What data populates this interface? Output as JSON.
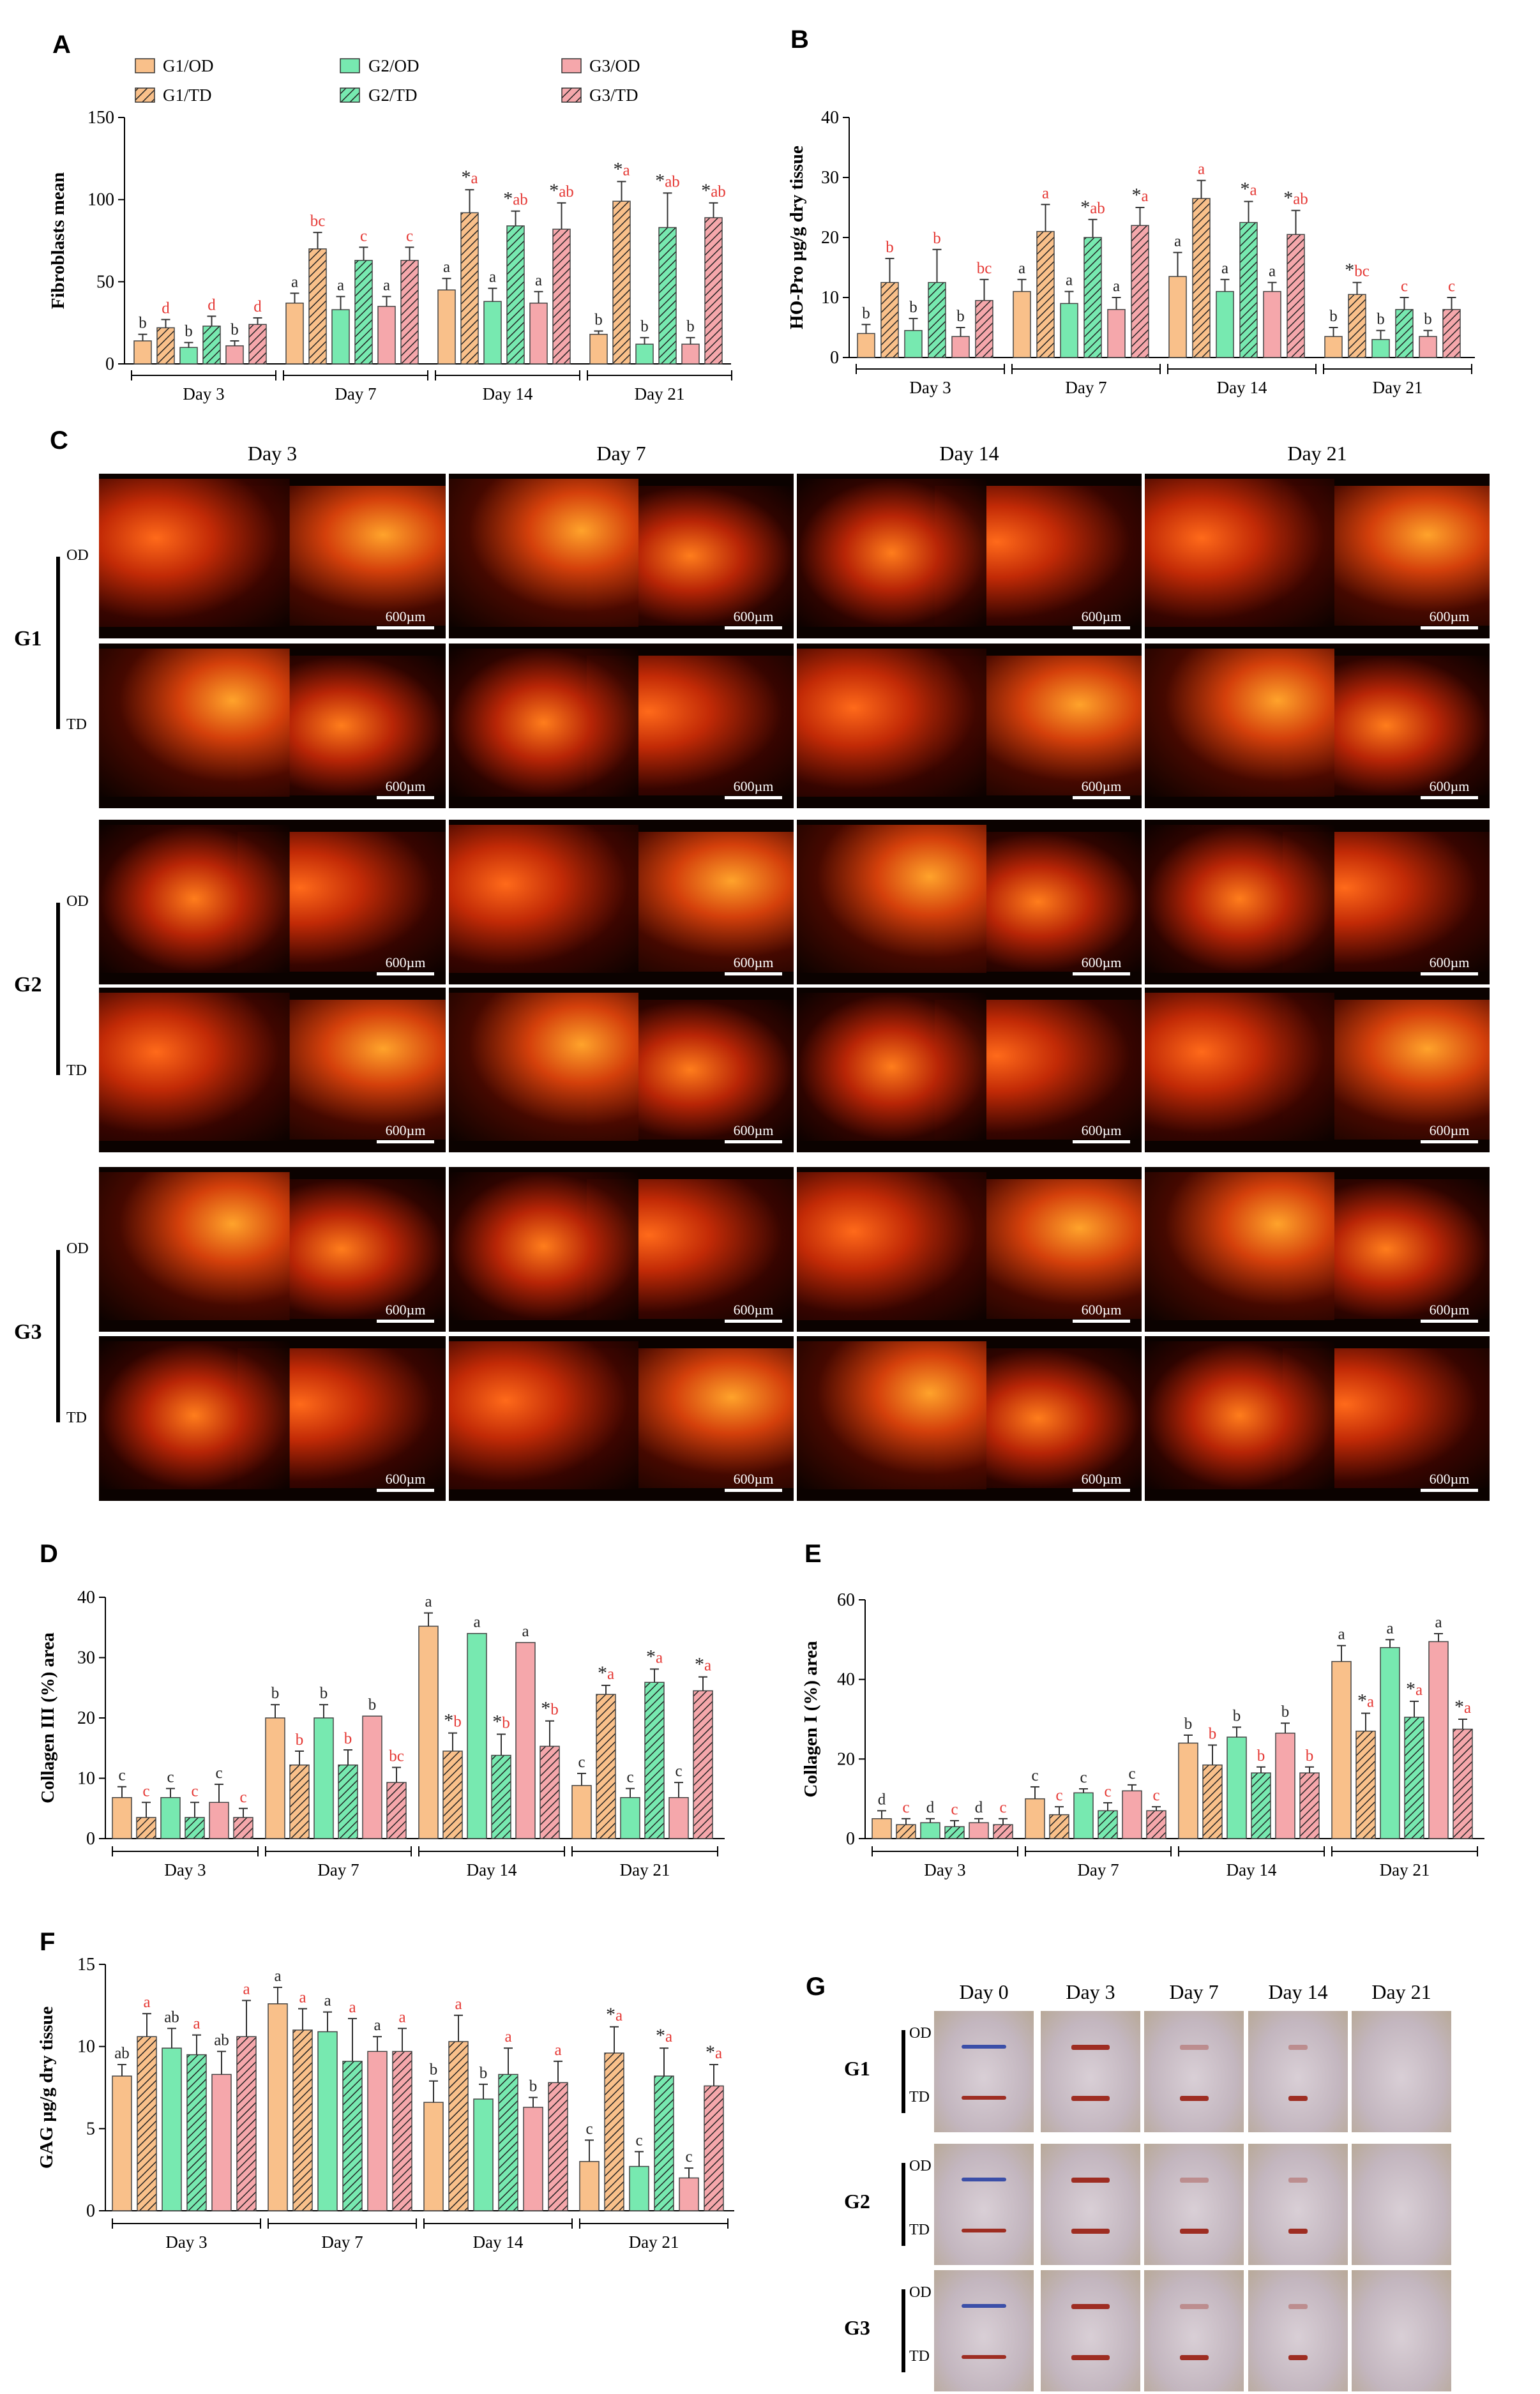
{
  "legend": {
    "entries": [
      "G1/OD",
      "G1/TD",
      "G2/OD",
      "G2/TD",
      "G3/OD",
      "G3/TD"
    ],
    "colors": {
      "G1": "#f9c08a",
      "G2": "#77e9b0",
      "G3": "#f5a7ab"
    },
    "td_pattern": "diagonal-hatch"
  },
  "letters": {
    "A": "A",
    "B": "B",
    "C": "C",
    "D": "D",
    "E": "E",
    "F": "F",
    "G": "G"
  },
  "histology": {
    "days": [
      "Day 3",
      "Day 7",
      "Day 14",
      "Day 21"
    ],
    "groups": [
      "G1",
      "G2",
      "G3"
    ],
    "rows": [
      "OD",
      "TD"
    ],
    "scale_bar": "600µm"
  },
  "wound_photos": {
    "days": [
      "Day 0",
      "Day 3",
      "Day 7",
      "Day 14",
      "Day 21"
    ],
    "groups": [
      "G1",
      "G2",
      "G3"
    ],
    "rows": [
      "OD",
      "TD"
    ]
  },
  "chart_data": [
    {
      "panel": "A",
      "type": "bar",
      "ylabel": "Fibroblasts mean",
      "ylim": [
        0,
        150
      ],
      "yticks": [
        0,
        50,
        100,
        150
      ],
      "categories": [
        "Day 3",
        "Day 7",
        "Day 14",
        "Day 21"
      ],
      "series": [
        {
          "name": "G1/OD",
          "values": [
            14,
            37,
            45,
            18
          ],
          "errors": [
            4,
            6,
            7,
            2
          ],
          "labels": [
            "b",
            "a",
            "a",
            "b"
          ]
        },
        {
          "name": "G1/TD",
          "values": [
            22,
            70,
            92,
            99
          ],
          "errors": [
            5,
            10,
            14,
            12
          ],
          "labels": [
            "d",
            "bc",
            "*a",
            "*a"
          ]
        },
        {
          "name": "G2/OD",
          "values": [
            10,
            33,
            38,
            12
          ],
          "errors": [
            3,
            8,
            8,
            4
          ],
          "labels": [
            "b",
            "a",
            "a",
            "b"
          ]
        },
        {
          "name": "G2/TD",
          "values": [
            23,
            63,
            84,
            83
          ],
          "errors": [
            6,
            8,
            9,
            21
          ],
          "labels": [
            "d",
            "c",
            "*ab",
            "*ab"
          ]
        },
        {
          "name": "G3/OD",
          "values": [
            11,
            35,
            37,
            12
          ],
          "errors": [
            3,
            6,
            7,
            4
          ],
          "labels": [
            "b",
            "a",
            "a",
            "b"
          ]
        },
        {
          "name": "G3/TD",
          "values": [
            24,
            63,
            82,
            89
          ],
          "errors": [
            4,
            8,
            16,
            9
          ],
          "labels": [
            "d",
            "c",
            "*ab",
            "*ab"
          ]
        }
      ]
    },
    {
      "panel": "B",
      "type": "bar",
      "ylabel": "HO-Pro µg/g dry tissue",
      "ylim": [
        0,
        40
      ],
      "yticks": [
        0,
        10,
        20,
        30,
        40
      ],
      "categories": [
        "Day 3",
        "Day 7",
        "Day 14",
        "Day 21"
      ],
      "series": [
        {
          "name": "G1/OD",
          "values": [
            4,
            11,
            13.5,
            3.5
          ],
          "errors": [
            1.5,
            2,
            4,
            1.5
          ],
          "labels": [
            "b",
            "a",
            "a",
            "b"
          ]
        },
        {
          "name": "G1/TD",
          "values": [
            12.5,
            21,
            26.5,
            10.5
          ],
          "errors": [
            4,
            4.5,
            3,
            2
          ],
          "labels": [
            "b",
            "a",
            "a",
            "*bc"
          ]
        },
        {
          "name": "G2/OD",
          "values": [
            4.5,
            9,
            11,
            3
          ],
          "errors": [
            2,
            2,
            2,
            1.5
          ],
          "labels": [
            "b",
            "a",
            "a",
            "b"
          ]
        },
        {
          "name": "G2/TD",
          "values": [
            12.5,
            20,
            22.5,
            8
          ],
          "errors": [
            5.5,
            3,
            3.5,
            2
          ],
          "labels": [
            "b",
            "*ab",
            "*a",
            "c"
          ]
        },
        {
          "name": "G3/OD",
          "values": [
            3.5,
            8,
            11,
            3.5
          ],
          "errors": [
            1.5,
            2,
            1.5,
            1
          ],
          "labels": [
            "b",
            "a",
            "a",
            "b"
          ]
        },
        {
          "name": "G3/TD",
          "values": [
            9.5,
            22,
            20.5,
            8
          ],
          "errors": [
            3.5,
            3,
            4,
            2
          ],
          "labels": [
            "bc",
            "*a",
            "*ab",
            "c"
          ]
        }
      ]
    },
    {
      "panel": "D",
      "type": "bar",
      "ylabel": "Collagen III (%) area",
      "ylim": [
        0,
        40
      ],
      "yticks": [
        0,
        10,
        20,
        30,
        40
      ],
      "categories": [
        "Day 3",
        "Day 7",
        "Day 14",
        "Day 21"
      ],
      "series": [
        {
          "name": "G1/OD",
          "values": [
            6.8,
            20,
            35.2,
            8.8
          ],
          "errors": [
            1.8,
            2.2,
            2.2,
            2
          ],
          "labels": [
            "c",
            "b",
            "a",
            "c"
          ]
        },
        {
          "name": "G1/TD",
          "values": [
            3.5,
            12.2,
            14.5,
            23.9
          ],
          "errors": [
            2.5,
            2.3,
            3,
            1.5
          ],
          "labels": [
            "c",
            "b",
            "*b",
            "*a"
          ]
        },
        {
          "name": "G2/OD",
          "values": [
            6.8,
            20,
            34,
            6.8
          ],
          "errors": [
            1.5,
            2.2,
            0,
            1.5
          ],
          "labels": [
            "c",
            "b",
            "a",
            "c"
          ]
        },
        {
          "name": "G2/TD",
          "values": [
            3.5,
            12.2,
            13.8,
            25.9
          ],
          "errors": [
            2.5,
            2.5,
            3.5,
            2.2
          ],
          "labels": [
            "c",
            "b",
            "*b",
            "*a"
          ]
        },
        {
          "name": "G3/OD",
          "values": [
            6,
            20.3,
            32.5,
            6.8
          ],
          "errors": [
            3,
            0,
            0,
            2.5
          ],
          "labels": [
            "c",
            "b",
            "a",
            "c"
          ]
        },
        {
          "name": "G3/TD",
          "values": [
            3.5,
            9.3,
            15.3,
            24.5
          ],
          "errors": [
            1.5,
            2.5,
            4.2,
            2.3
          ],
          "labels": [
            "c",
            "bc",
            "*b",
            "*a"
          ]
        }
      ]
    },
    {
      "panel": "E",
      "type": "bar",
      "ylabel": "Collagen I (%) area",
      "ylim": [
        0,
        60
      ],
      "yticks": [
        0,
        20,
        40,
        60
      ],
      "categories": [
        "Day 3",
        "Day 7",
        "Day 14",
        "Day 21"
      ],
      "series": [
        {
          "name": "G1/OD",
          "values": [
            5,
            10,
            24,
            44.5
          ],
          "errors": [
            2,
            3,
            2,
            4
          ],
          "labels": [
            "d",
            "c",
            "b",
            "a"
          ]
        },
        {
          "name": "G1/TD",
          "values": [
            3.5,
            6,
            18.5,
            27
          ],
          "errors": [
            1.5,
            2,
            5,
            4.5
          ],
          "labels": [
            "c",
            "c",
            "b",
            "*a"
          ]
        },
        {
          "name": "G2/OD",
          "values": [
            4,
            11.5,
            25.5,
            48
          ],
          "errors": [
            1,
            1,
            2.5,
            2
          ],
          "labels": [
            "d",
            "c",
            "b",
            "a"
          ]
        },
        {
          "name": "G2/TD",
          "values": [
            3,
            7,
            16.5,
            30.5
          ],
          "errors": [
            1.5,
            2,
            1.5,
            4
          ],
          "labels": [
            "c",
            "c",
            "b",
            "*a"
          ]
        },
        {
          "name": "G3/OD",
          "values": [
            4,
            12,
            26.5,
            49.5
          ],
          "errors": [
            1,
            1.5,
            2.5,
            2
          ],
          "labels": [
            "d",
            "c",
            "b",
            "a"
          ]
        },
        {
          "name": "G3/TD",
          "values": [
            3.5,
            7,
            16.5,
            27.5
          ],
          "errors": [
            1.5,
            1,
            1.5,
            2.5
          ],
          "labels": [
            "c",
            "c",
            "b",
            "*a"
          ]
        }
      ]
    },
    {
      "panel": "F",
      "type": "bar",
      "ylabel": "GAG µg/g dry tissue",
      "ylim": [
        0,
        15
      ],
      "yticks": [
        0,
        5,
        10,
        15
      ],
      "categories": [
        "Day 3",
        "Day 7",
        "Day 14",
        "Day 21"
      ],
      "series": [
        {
          "name": "G1/OD",
          "values": [
            8.2,
            12.6,
            6.6,
            3
          ],
          "errors": [
            0.7,
            1,
            1.3,
            1.3
          ],
          "labels": [
            "ab",
            "a",
            "b",
            "c"
          ]
        },
        {
          "name": "G1/TD",
          "values": [
            10.6,
            11,
            10.3,
            9.6
          ],
          "errors": [
            1.4,
            1.3,
            1.6,
            1.6
          ],
          "labels": [
            "a",
            "a",
            "a",
            "*a"
          ]
        },
        {
          "name": "G2/OD",
          "values": [
            9.9,
            10.9,
            6.8,
            2.7
          ],
          "errors": [
            1.2,
            1.2,
            0.9,
            0.9
          ],
          "labels": [
            "ab",
            "a",
            "b",
            "c"
          ]
        },
        {
          "name": "G2/TD",
          "values": [
            9.5,
            9.1,
            8.3,
            8.2
          ],
          "errors": [
            1.2,
            2.6,
            1.6,
            1.7
          ],
          "labels": [
            "a",
            "a",
            "a",
            "*a"
          ]
        },
        {
          "name": "G3/OD",
          "values": [
            8.3,
            9.7,
            6.3,
            2
          ],
          "errors": [
            1.4,
            0.9,
            0.6,
            0.6
          ],
          "labels": [
            "ab",
            "a",
            "b",
            "c"
          ]
        },
        {
          "name": "G3/TD",
          "values": [
            10.6,
            9.7,
            7.8,
            7.6
          ],
          "errors": [
            2.2,
            1.4,
            1.3,
            1.3
          ],
          "labels": [
            "a",
            "a",
            "a",
            "*a"
          ]
        }
      ]
    }
  ]
}
